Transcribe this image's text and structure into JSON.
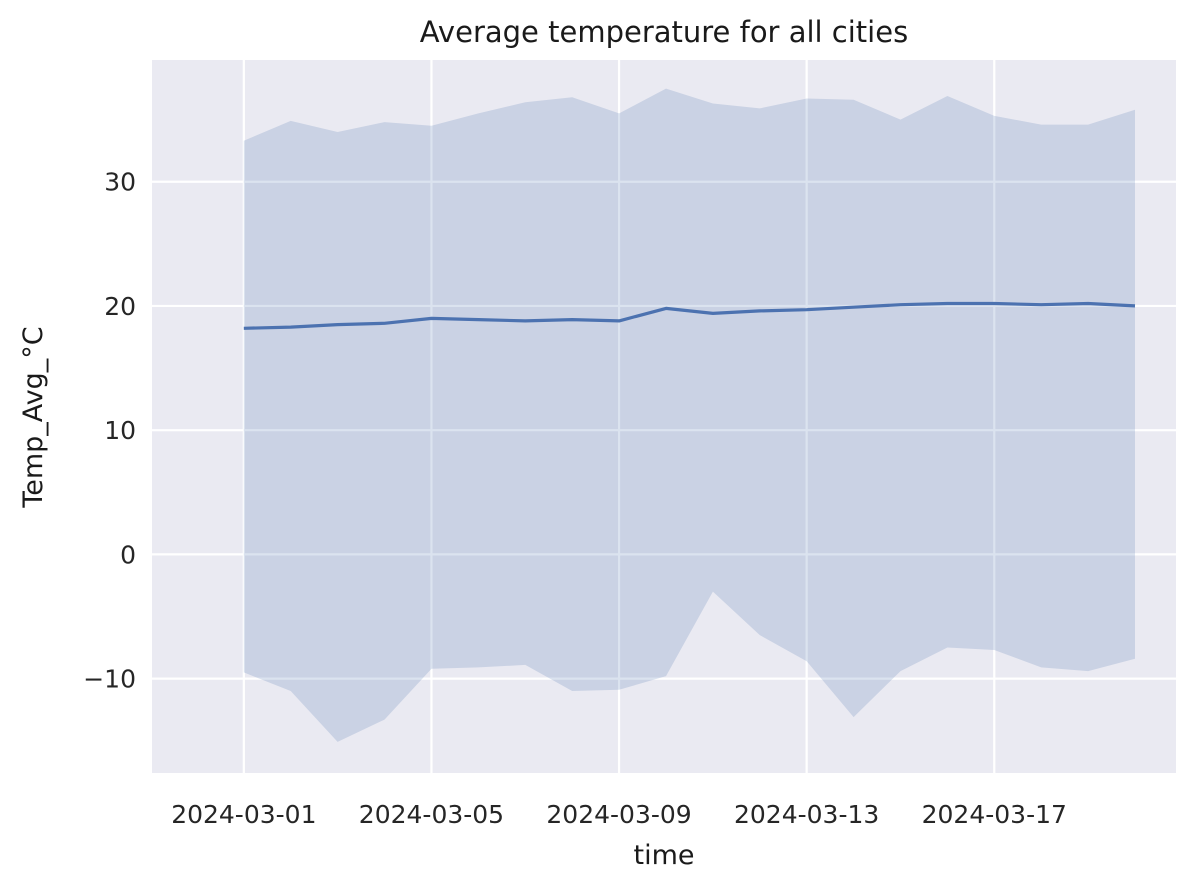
{
  "chart_data": {
    "type": "line",
    "title": "Average temperature for all cities",
    "xlabel": "time",
    "ylabel": "Temp_Avg_°C",
    "x": [
      "2024-03-01",
      "2024-03-02",
      "2024-03-03",
      "2024-03-04",
      "2024-03-05",
      "2024-03-06",
      "2024-03-07",
      "2024-03-08",
      "2024-03-09",
      "2024-03-10",
      "2024-03-11",
      "2024-03-12",
      "2024-03-13",
      "2024-03-14",
      "2024-03-15",
      "2024-03-16",
      "2024-03-17",
      "2024-03-18",
      "2024-03-19",
      "2024-03-20"
    ],
    "x_ticks": [
      "2024-03-01",
      "2024-03-05",
      "2024-03-09",
      "2024-03-13",
      "2024-03-17"
    ],
    "y_ticks": [
      30,
      20,
      10,
      0,
      -10
    ],
    "y_tick_labels": [
      "30",
      "20",
      "10",
      "0",
      "−10"
    ],
    "xlim": [
      "2024-02-28 01:00",
      "2024-03-20 21:00"
    ],
    "ylim": [
      -17.6,
      39.8
    ],
    "grid": true,
    "series": [
      {
        "values": [
          18.2,
          18.3,
          18.5,
          18.6,
          19.0,
          18.9,
          18.8,
          18.9,
          18.8,
          19.8,
          19.4,
          19.6,
          19.7,
          19.9,
          20.1,
          20.2,
          20.2,
          20.1,
          20.2,
          20.0
        ],
        "upper": [
          33.3,
          34.9,
          34.0,
          34.8,
          34.5,
          35.5,
          36.4,
          36.8,
          35.5,
          37.5,
          36.3,
          35.9,
          36.7,
          36.6,
          35.0,
          36.9,
          35.3,
          34.6,
          34.6,
          35.8
        ],
        "lower": [
          -9.5,
          -11.0,
          -15.1,
          -13.3,
          -9.2,
          -9.1,
          -8.9,
          -11.0,
          -10.9,
          -9.8,
          -3.0,
          -6.5,
          -8.6,
          -13.1,
          -9.4,
          -7.5,
          -7.7,
          -9.1,
          -9.4,
          -8.4
        ],
        "color": "#4c72b0"
      }
    ],
    "colors": {
      "background": "#eaeaf2",
      "grid": "#ffffff",
      "series": "#4c72b0"
    }
  }
}
